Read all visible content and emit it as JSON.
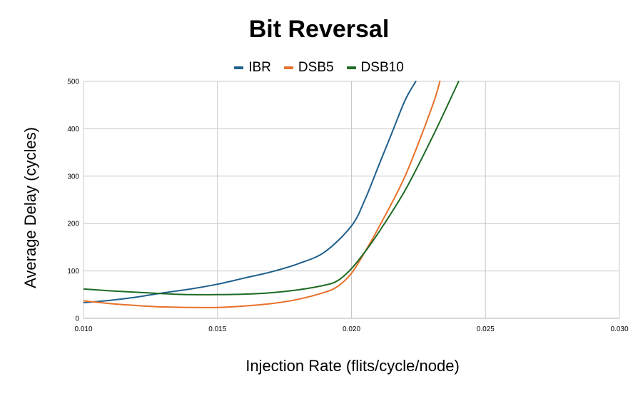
{
  "chart_data": {
    "type": "line",
    "title": "Bit Reversal",
    "xlabel": "Injection Rate (flits/cycle/node)",
    "ylabel": "Average Delay (cycles)",
    "xlim": [
      0.01,
      0.03
    ],
    "ylim": [
      0,
      500
    ],
    "x_ticks": [
      "0.010",
      "0.015",
      "0.020",
      "0.025",
      "0.030"
    ],
    "y_ticks": [
      "0",
      "100",
      "200",
      "300",
      "400",
      "500"
    ],
    "grid": true,
    "legend_position": "top",
    "series": [
      {
        "name": "IBR",
        "color": "#1f5f8b",
        "x": [
          0.01,
          0.011,
          0.012,
          0.013,
          0.014,
          0.015,
          0.016,
          0.017,
          0.018,
          0.019,
          0.02,
          0.0205,
          0.021,
          0.0215,
          0.022,
          0.0224
        ],
        "y": [
          33,
          38,
          45,
          54,
          62,
          72,
          85,
          98,
          115,
          140,
          195,
          250,
          320,
          390,
          460,
          500
        ]
      },
      {
        "name": "DSB5",
        "color": "#e8702a",
        "x": [
          0.01,
          0.011,
          0.012,
          0.013,
          0.014,
          0.015,
          0.016,
          0.017,
          0.018,
          0.019,
          0.0195,
          0.02,
          0.0205,
          0.021,
          0.022,
          0.023,
          0.0233
        ],
        "y": [
          37,
          31,
          27,
          24,
          23,
          23,
          26,
          31,
          40,
          55,
          68,
          95,
          140,
          190,
          300,
          445,
          500
        ]
      },
      {
        "name": "DSB10",
        "color": "#1e6b23",
        "x": [
          0.01,
          0.011,
          0.012,
          0.013,
          0.014,
          0.015,
          0.016,
          0.017,
          0.018,
          0.019,
          0.0195,
          0.02,
          0.0205,
          0.021,
          0.022,
          0.023,
          0.024
        ],
        "y": [
          62,
          58,
          55,
          52,
          50,
          50,
          51,
          54,
          60,
          70,
          80,
          105,
          140,
          180,
          270,
          380,
          500
        ]
      }
    ]
  }
}
